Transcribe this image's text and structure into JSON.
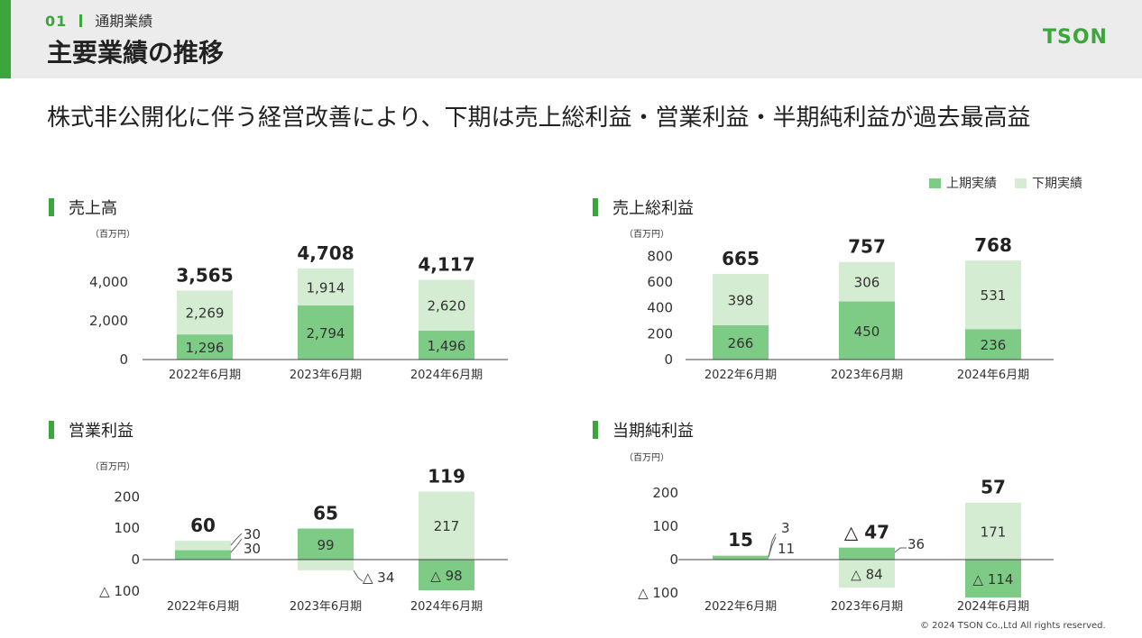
{
  "header": {
    "section_number": "01",
    "section_label": "通期業績",
    "title": "主要業績の推移",
    "logo_text": "TSON"
  },
  "headline": "株式非公開化に伴う経営改善により、下期は売上総利益・営業利益・半期純利益が過去最高益",
  "legend": {
    "first_half": "上期実績",
    "second_half": "下期実績"
  },
  "colors": {
    "accent": "#3aa63c",
    "first_half": "#7dcb85",
    "second_half": "#d4ecd1"
  },
  "footer": "© 2024 TSON Co.,Ltd All rights reserved.",
  "chart_data": [
    {
      "id": "sales",
      "type": "bar",
      "title": "売上高",
      "unit": "（百万円）",
      "categories": [
        "2022年6月期",
        "2023年6月期",
        "2024年6月期"
      ],
      "series": [
        {
          "name": "上期実績",
          "values": [
            1296,
            2794,
            1496
          ],
          "labels": [
            "1,296",
            "2,794",
            "1,496"
          ]
        },
        {
          "name": "下期実績",
          "values": [
            2269,
            1914,
            2620
          ],
          "labels": [
            "2,269",
            "1,914",
            "2,620"
          ]
        }
      ],
      "totals": [
        "3,565",
        "4,708",
        "4,117"
      ],
      "yticks": [
        0,
        2000,
        4000
      ],
      "ytick_labels": [
        "0",
        "2,000",
        "4,000"
      ],
      "ylim": [
        0,
        5000
      ]
    },
    {
      "id": "gross_profit",
      "type": "bar",
      "title": "売上総利益",
      "unit": "（百万円）",
      "categories": [
        "2022年6月期",
        "2023年6月期",
        "2024年6月期"
      ],
      "series": [
        {
          "name": "上期実績",
          "values": [
            266,
            450,
            236
          ],
          "labels": [
            "266",
            "450",
            "236"
          ]
        },
        {
          "name": "下期実績",
          "values": [
            398,
            306,
            531
          ],
          "labels": [
            "398",
            "306",
            "531"
          ]
        }
      ],
      "totals": [
        "665",
        "757",
        "768"
      ],
      "yticks": [
        0,
        200,
        400,
        600,
        800
      ],
      "ytick_labels": [
        "0",
        "200",
        "400",
        "600",
        "800"
      ],
      "ylim": [
        0,
        800
      ]
    },
    {
      "id": "operating_profit",
      "type": "bar",
      "title": "営業利益",
      "unit": "（百万円）",
      "categories": [
        "2022年6月期",
        "2023年6月期",
        "2024年6月期"
      ],
      "series": [
        {
          "name": "上期実績",
          "values": [
            30,
            99,
            -98
          ],
          "labels": [
            "30",
            "99",
            "△ 98"
          ]
        },
        {
          "name": "下期実績",
          "values": [
            30,
            -34,
            217
          ],
          "labels": [
            "30",
            "△ 34",
            "217"
          ]
        }
      ],
      "totals": [
        "60",
        "65",
        "119"
      ],
      "yticks": [
        -100,
        0,
        100,
        200
      ],
      "ytick_labels": [
        "△ 100",
        "0",
        "100",
        "200"
      ],
      "ylim": [
        -100,
        200
      ]
    },
    {
      "id": "net_income",
      "type": "bar",
      "title": "当期純利益",
      "unit": "（百万円）",
      "categories": [
        "2022年6月期",
        "2023年6月期",
        "2024年6月期"
      ],
      "series": [
        {
          "name": "上期実績",
          "values": [
            11,
            36,
            -114
          ],
          "labels": [
            "11",
            "36",
            "△ 114"
          ]
        },
        {
          "name": "下期実績",
          "values": [
            3,
            -84,
            171
          ],
          "labels": [
            "3",
            "△ 84",
            "171"
          ]
        }
      ],
      "totals": [
        "15",
        "△ 47",
        "57"
      ],
      "yticks": [
        -100,
        0,
        100,
        200
      ],
      "ytick_labels": [
        "△ 100",
        "0",
        "100",
        "200"
      ],
      "ylim": [
        -100,
        200
      ]
    }
  ]
}
